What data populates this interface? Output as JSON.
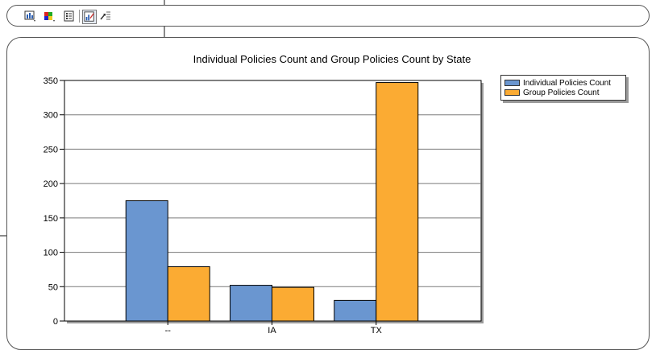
{
  "toolbar": {
    "buttons": [
      {
        "name": "chart-type-icon",
        "dropdown": true
      },
      {
        "name": "color-palette-icon",
        "dropdown": true
      },
      {
        "name": "legend-toggle-icon",
        "dropdown": false
      },
      {
        "name": "chart-wizard-icon",
        "dropdown": false,
        "active": true
      },
      {
        "name": "drill-icon",
        "dropdown": false
      }
    ]
  },
  "chart_data": {
    "type": "bar",
    "title": "Individual Policies Count and Group Policies Count by State",
    "xlabel": "",
    "ylabel": "",
    "categories": [
      "--",
      "IA",
      "TX"
    ],
    "series": [
      {
        "name": "Individual Policies Count",
        "color": "#6a96d0",
        "values": [
          175,
          52,
          30
        ]
      },
      {
        "name": "Group Policies Count",
        "color": "#fbab33",
        "values": [
          79,
          49,
          347
        ]
      }
    ],
    "ylim": [
      0,
      350
    ],
    "yticks": [
      0,
      50,
      100,
      150,
      200,
      250,
      300,
      350
    ],
    "grid": true,
    "legend_position": "top-right"
  }
}
